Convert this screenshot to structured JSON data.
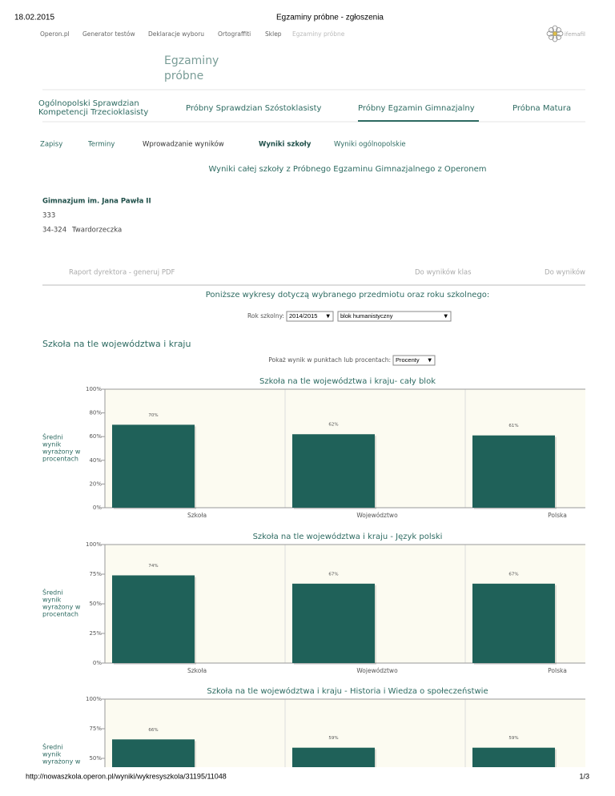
{
  "print_header": {
    "date": "18.02.2015",
    "title": "Egzaminy próbne - zgłoszenia"
  },
  "top_nav": [
    "Operon.pl",
    "Generator testów",
    "Deklaracje wyboru",
    "Ortograffiti",
    "Sklep",
    "Egzaminy próbne"
  ],
  "user": "ifemafil",
  "logo": [
    "Egzaminy",
    "próbne"
  ],
  "tabs": [
    [
      "Ogólnopolski Sprawdzian",
      "Kompetencji Trzecioklasisty"
    ],
    [
      "Próbny Sprawdzian Szóstoklasisty"
    ],
    [
      "Próbny Egzamin Gimnazjalny"
    ],
    [
      "Próbna Matura"
    ]
  ],
  "sub_nav": [
    "Zapisy",
    "Terminy",
    "Wprowadzanie wyników",
    "Wyniki szkoły",
    "Wyniki ogólnopolskie"
  ],
  "heading": "Wyniki całej szkoły z Próbnego Egzaminu Gimnazjalnego z Operonem",
  "school": {
    "name": "Gimnazjum im. Jana Pawła II",
    "number": "333",
    "postal_code": "34-324",
    "town": "Twardorzeczka"
  },
  "links": {
    "report": "Raport dyrektora - generuj PDF",
    "classes": "Do wyników klas",
    "results": "Do wyników"
  },
  "filters": {
    "intro": "Poniższe wykresy dotyczą wybranego przedmiotu oraz roku szkolnego:",
    "year_label": "Rok szkolny:",
    "year": "2014/2015",
    "block": "blok humanistyczny"
  },
  "section_title": "Szkoła na tle województwa i kraju",
  "unit_label": "Pokaż wynik w punktach lub procentach:",
  "unit": "Procenty",
  "chart_data": [
    {
      "type": "bar",
      "title": "Szkoła na tle województwa i kraju- cały blok",
      "y_label": [
        "Średni",
        "wynik",
        "wyrażony w",
        "procentach"
      ],
      "categories": [
        "Szkoła",
        "Województwo",
        "Polska"
      ],
      "values": [
        70,
        62,
        61
      ],
      "value_labels": [
        "70%",
        "62%",
        "61%"
      ],
      "color": "#1f6159",
      "ylim": [
        0,
        100
      ],
      "yticks": [
        {
          "value": 0,
          "label": "0%"
        },
        {
          "value": 20,
          "label": "20%"
        },
        {
          "value": 40,
          "label": "40%"
        },
        {
          "value": 60,
          "label": "60%"
        },
        {
          "value": 80,
          "label": "80%"
        },
        {
          "value": 100,
          "label": "100%"
        }
      ]
    },
    {
      "type": "bar",
      "title": "Szkoła na tle województwa i kraju - Język polski",
      "y_label": [
        "Średni",
        "wynik",
        "wyrażony w",
        "procentach"
      ],
      "categories": [
        "Szkoła",
        "Województwo",
        "Polska"
      ],
      "values": [
        74,
        67,
        67
      ],
      "value_labels": [
        "74%",
        "67%",
        "67%"
      ],
      "color": "#1f6159",
      "ylim": [
        0,
        100
      ],
      "yticks": [
        {
          "value": 0,
          "label": "0%"
        },
        {
          "value": 25,
          "label": "25%"
        },
        {
          "value": 50,
          "label": "50%"
        },
        {
          "value": 75,
          "label": "75%"
        },
        {
          "value": 100,
          "label": "100%"
        }
      ]
    },
    {
      "type": "bar",
      "title": "Szkoła na tle województwa i kraju - Historia i Wiedza o społeczeństwie",
      "y_label": [
        "Średni",
        "wynik",
        "wyrażony w"
      ],
      "categories": [
        null,
        null,
        null
      ],
      "values": [
        66,
        59,
        59
      ],
      "value_labels": [
        "66%",
        "59%",
        "59%"
      ],
      "color": "#1f6159",
      "ylim": [
        0,
        100
      ],
      "yticks": [
        {
          "value": 50,
          "label": "50%"
        },
        {
          "value": 75,
          "label": "75%"
        },
        {
          "value": 100,
          "label": "100%"
        }
      ]
    }
  ],
  "footer": {
    "url": "http://nowaszkola.operon.pl/wyniki/wykresyszkola/31195/11048",
    "page": "1/3"
  }
}
